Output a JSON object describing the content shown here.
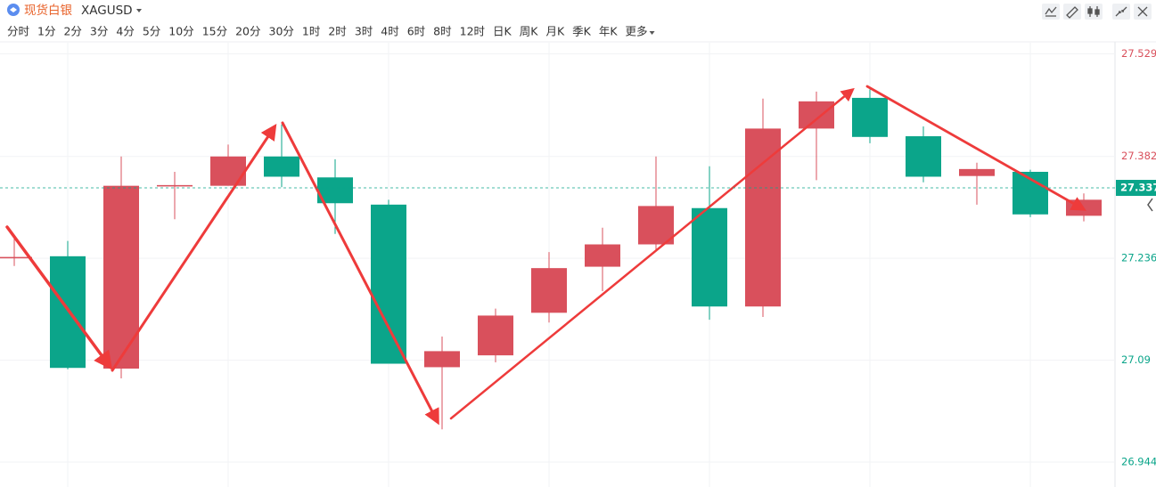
{
  "toolbar": {
    "symbol_name": "现货白银",
    "symbol_code": "XAGUSD",
    "periods": [
      "分时",
      "1分",
      "2分",
      "3分",
      "4分",
      "5分",
      "10分",
      "15分",
      "20分",
      "30分",
      "1时",
      "2时",
      "3时",
      "4时",
      "6时",
      "8时",
      "12时",
      "日K",
      "周K",
      "月K",
      "季K",
      "年K",
      "更多"
    ],
    "active_period": 10
  },
  "chart_data": {
    "type": "candlestick",
    "open": [
      27.236,
      27.239,
      27.078,
      27.339,
      27.34,
      27.382,
      27.352,
      27.313,
      27.08,
      27.097,
      27.158,
      27.224,
      27.256,
      27.308,
      27.167,
      27.422,
      27.466,
      27.411,
      27.354,
      27.36,
      27.297
    ],
    "high": [
      27.269,
      27.261,
      27.382,
      27.36,
      27.399,
      27.428,
      27.378,
      27.32,
      27.124,
      27.164,
      27.245,
      27.28,
      27.382,
      27.368,
      27.465,
      27.475,
      27.478,
      27.425,
      27.373,
      27.363,
      27.329
    ],
    "low": [
      27.225,
      27.077,
      27.064,
      27.292,
      27.34,
      27.338,
      27.271,
      27.085,
      26.991,
      27.087,
      27.144,
      27.189,
      27.248,
      27.148,
      27.152,
      27.348,
      27.401,
      27.345,
      27.313,
      27.295,
      27.289
    ],
    "close": [
      27.238,
      27.079,
      27.34,
      27.341,
      27.382,
      27.353,
      27.315,
      27.085,
      27.103,
      27.154,
      27.222,
      27.256,
      27.311,
      27.167,
      27.422,
      27.461,
      27.41,
      27.353,
      27.364,
      27.299,
      27.32
    ],
    "up_color": "#d9505c",
    "down_color": "#0ba58a",
    "ylim": [
      26.93,
      27.545
    ],
    "yticks": [
      26.944,
      27.09,
      {
        "value": 27.236,
        "label": "27.236"
      },
      27.382,
      27.529
    ],
    "last_price": 27.337,
    "grid": true
  }
}
